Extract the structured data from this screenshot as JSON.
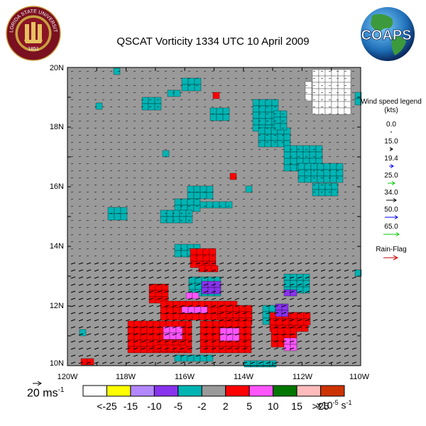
{
  "title": "QSCAT Vorticity 1334 UTC 10 April 2009",
  "logos": {
    "fsu_text": "FLORIDA STATE UNIVERSITY",
    "fsu_year": "1851",
    "coaps_text": "COAPS"
  },
  "map": {
    "lat_labels": [
      "20N",
      "18N",
      "16N",
      "14N",
      "12N",
      "10N"
    ],
    "lon_labels": [
      "120W",
      "118W",
      "116W",
      "114W",
      "112W",
      "110W"
    ],
    "lat_range": [
      10,
      20
    ],
    "lon_range": [
      -120,
      -110
    ],
    "background_color": "#9a9a9a",
    "cell_colors": {
      "teal": "#00b4b4",
      "red": "#ff0000",
      "magenta": "#ff55ff",
      "purple": "#8833ee",
      "white": "#ffffff"
    }
  },
  "wind_legend": {
    "title": "Wind speed legend (kts)",
    "items": [
      {
        "value": "0.0",
        "color": "#000000"
      },
      {
        "value": "15.0",
        "color": "#000000"
      },
      {
        "value": "19.4",
        "color": "#0000ff"
      },
      {
        "value": "25.0",
        "color": "#00cc00"
      },
      {
        "value": "34.0",
        "color": "#000000"
      },
      {
        "value": "50.0",
        "color": "#0000ff"
      },
      {
        "value": "65.0",
        "color": "#00cc00"
      }
    ],
    "rain_flag": "Rain-Flag",
    "rain_flag_color": "#cc0000"
  },
  "scale_reference": {
    "value": "20 ms",
    "exponent": "-1"
  },
  "colorbar": {
    "colors": [
      "#ffffff",
      "#ffff00",
      "#b388ff",
      "#8833ee",
      "#00b4b4",
      "#9a9a9a",
      "#ff0000",
      "#ff55ff",
      "#007700",
      "#ffbbbb",
      "#cc3300"
    ],
    "labels": [
      "<-25",
      "-15",
      "-10",
      "-5",
      "-2",
      "2",
      "5",
      "10",
      "15",
      ">25"
    ],
    "units_prefix": "x10",
    "units_exp1": "-5",
    "units_mid": " s",
    "units_exp2": "-1"
  }
}
